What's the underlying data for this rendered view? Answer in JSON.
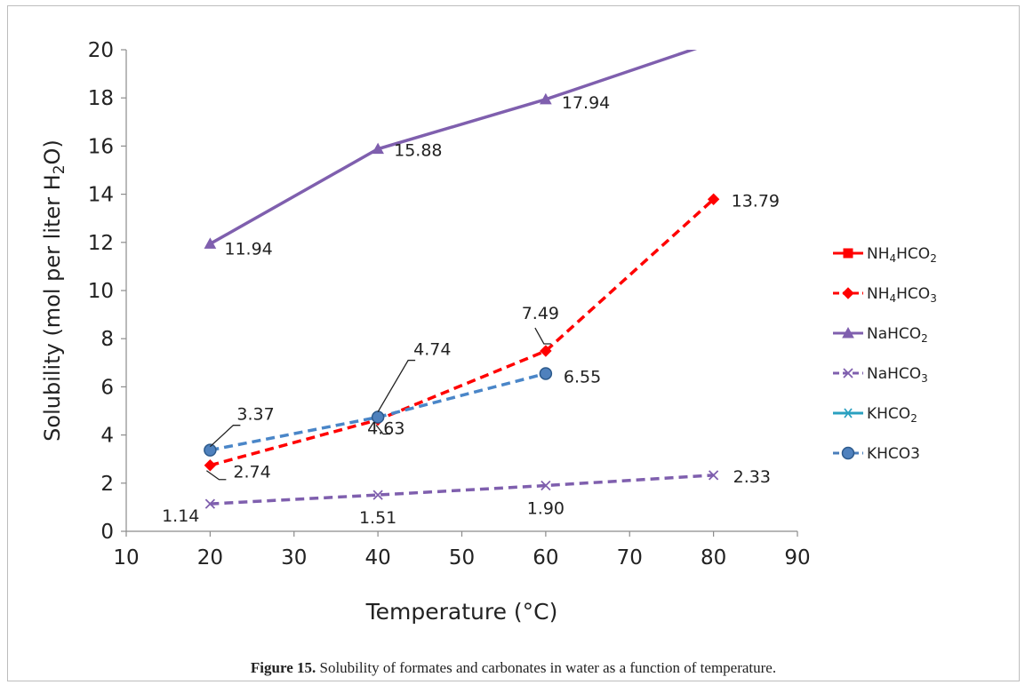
{
  "caption": {
    "label": "Figure 15.",
    "text": "Solubility of formates and carbonates in water as a function of temperature."
  },
  "chart_data": {
    "type": "line",
    "xlabel": "Temperature (°C)",
    "ylabel": {
      "pre": "Solubility  (mol per liter H",
      "sub": "2",
      "post": "O)"
    },
    "xlim": [
      10,
      90
    ],
    "ylim": [
      0,
      20
    ],
    "xticks": [
      10,
      20,
      30,
      40,
      50,
      60,
      70,
      80,
      90
    ],
    "yticks": [
      0,
      2,
      4,
      6,
      8,
      10,
      12,
      14,
      16,
      18,
      20
    ],
    "grid": false,
    "legend_position": "right",
    "series": [
      {
        "name": {
          "pre": "NH",
          "sub": "4",
          "post": "HCO",
          "sub2": "2"
        },
        "color": "#ff0000",
        "dash": "solid",
        "marker": "square",
        "x": [],
        "y": [],
        "labels": []
      },
      {
        "name": {
          "pre": "NH",
          "sub": "4",
          "post": "HCO",
          "sub2": "3"
        },
        "color": "#ff0000",
        "dash": "dashed",
        "marker": "diamond",
        "x": [
          20,
          40,
          60,
          80
        ],
        "y": [
          2.74,
          4.63,
          7.49,
          13.79
        ],
        "labels": [
          "2.74",
          "4.63",
          "7.49",
          "13.79"
        ]
      },
      {
        "name": {
          "pre": "NaHCO",
          "sub": "2",
          "post": "",
          "sub2": ""
        },
        "color": "#7f5fae",
        "dash": "solid",
        "marker": "triangle",
        "x": [
          20,
          40,
          60,
          80
        ],
        "y": [
          11.94,
          15.88,
          17.94,
          20.3
        ],
        "labels": [
          "11.94",
          "15.88",
          "17.94",
          ""
        ]
      },
      {
        "name": {
          "pre": "NaHCO",
          "sub": "3",
          "post": "",
          "sub2": ""
        },
        "color": "#7f5fae",
        "dash": "dashed",
        "marker": "x",
        "x": [
          20,
          40,
          60,
          80
        ],
        "y": [
          1.14,
          1.51,
          1.9,
          2.33
        ],
        "labels": [
          "1.14",
          "1.51",
          "1.90",
          "2.33"
        ]
      },
      {
        "name": {
          "pre": "KHCO",
          "sub": "2",
          "post": "",
          "sub2": ""
        },
        "color": "#2aa0c0",
        "dash": "solid",
        "marker": "star",
        "x": [],
        "y": [],
        "labels": []
      },
      {
        "name": {
          "pre": "KHCO3",
          "sub": "",
          "post": "",
          "sub2": ""
        },
        "color": "#4a7ebb",
        "dash": "dashed",
        "marker": "circle",
        "x": [
          20,
          40,
          60
        ],
        "y": [
          3.37,
          4.74,
          6.55
        ],
        "labels": [
          "3.37",
          "4.74",
          "6.55"
        ]
      }
    ]
  }
}
